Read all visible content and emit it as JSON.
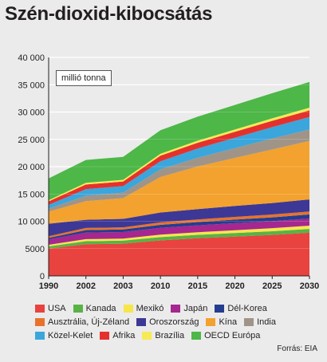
{
  "title": "Szén-dioxid-kibocsátás",
  "unit_label": "millió tonna",
  "source": "Forrás: EIA",
  "chart_data": {
    "type": "area",
    "stacked": true,
    "title": "Szén-dioxid-kibocsátás",
    "ylabel": "millió tonna",
    "xlabel": "",
    "x": [
      "1990",
      "2002",
      "2003",
      "2010",
      "2015",
      "2020",
      "2025",
      "2030"
    ],
    "ylim": [
      0,
      40000
    ],
    "yticks": [
      0,
      5000,
      10000,
      15000,
      20000,
      25000,
      30000,
      35000,
      40000
    ],
    "ytick_labels": [
      "0",
      "5000",
      "10 000",
      "15 000",
      "20 000",
      "25 000",
      "30 000",
      "35 000",
      "40 000"
    ],
    "grid": true,
    "legend_position": "bottom",
    "series": [
      {
        "name": "USA",
        "color": "#e8433f",
        "values": [
          5000,
          5800,
          5900,
          6500,
          6900,
          7200,
          7500,
          7900
        ]
      },
      {
        "name": "Kanada",
        "color": "#5ab246",
        "values": [
          400,
          550,
          550,
          600,
          620,
          650,
          680,
          700
        ]
      },
      {
        "name": "Mexikó",
        "color": "#f6e64a",
        "values": [
          300,
          380,
          380,
          450,
          480,
          520,
          560,
          600
        ]
      },
      {
        "name": "Japán",
        "color": "#a5278f",
        "values": [
          1000,
          1200,
          1200,
          1250,
          1250,
          1280,
          1280,
          1300
        ]
      },
      {
        "name": "Dél-Korea",
        "color": "#243d8f",
        "values": [
          250,
          450,
          460,
          550,
          600,
          650,
          700,
          750
        ]
      },
      {
        "name": "Ausztrália, Új-Zéland",
        "color": "#e8722c",
        "values": [
          300,
          400,
          400,
          450,
          480,
          500,
          520,
          550
        ]
      },
      {
        "name": "Oroszország",
        "color": "#3d3896",
        "values": [
          2300,
          1500,
          1550,
          1800,
          1900,
          2000,
          2100,
          2200
        ]
      },
      {
        "name": "Kína",
        "color": "#f3a22f",
        "values": [
          2200,
          3400,
          3800,
          6500,
          7800,
          8800,
          9800,
          10700
        ]
      },
      {
        "name": "India",
        "color": "#a09488",
        "values": [
          550,
          1000,
          1000,
          1400,
          1600,
          1800,
          2000,
          2100
        ]
      },
      {
        "name": "Közel-Kelet",
        "color": "#3aa6dc",
        "values": [
          700,
          1200,
          1200,
          1500,
          1700,
          1900,
          2100,
          2300
        ]
      },
      {
        "name": "Afrika",
        "color": "#e5312d",
        "values": [
          650,
          850,
          850,
          1000,
          1050,
          1100,
          1150,
          1200
        ]
      },
      {
        "name": "Brazília",
        "color": "#f7ea55",
        "values": [
          200,
          300,
          300,
          350,
          380,
          400,
          450,
          500
        ]
      },
      {
        "name": "OECD Európa",
        "color": "#4db748",
        "values": [
          4000,
          4200,
          4200,
          4300,
          4400,
          4500,
          4600,
          4700
        ]
      }
    ]
  },
  "legend_rows": [
    [
      0,
      1,
      2,
      3,
      4
    ],
    [
      5,
      6,
      7,
      8
    ],
    [
      9,
      10,
      11,
      12
    ]
  ]
}
